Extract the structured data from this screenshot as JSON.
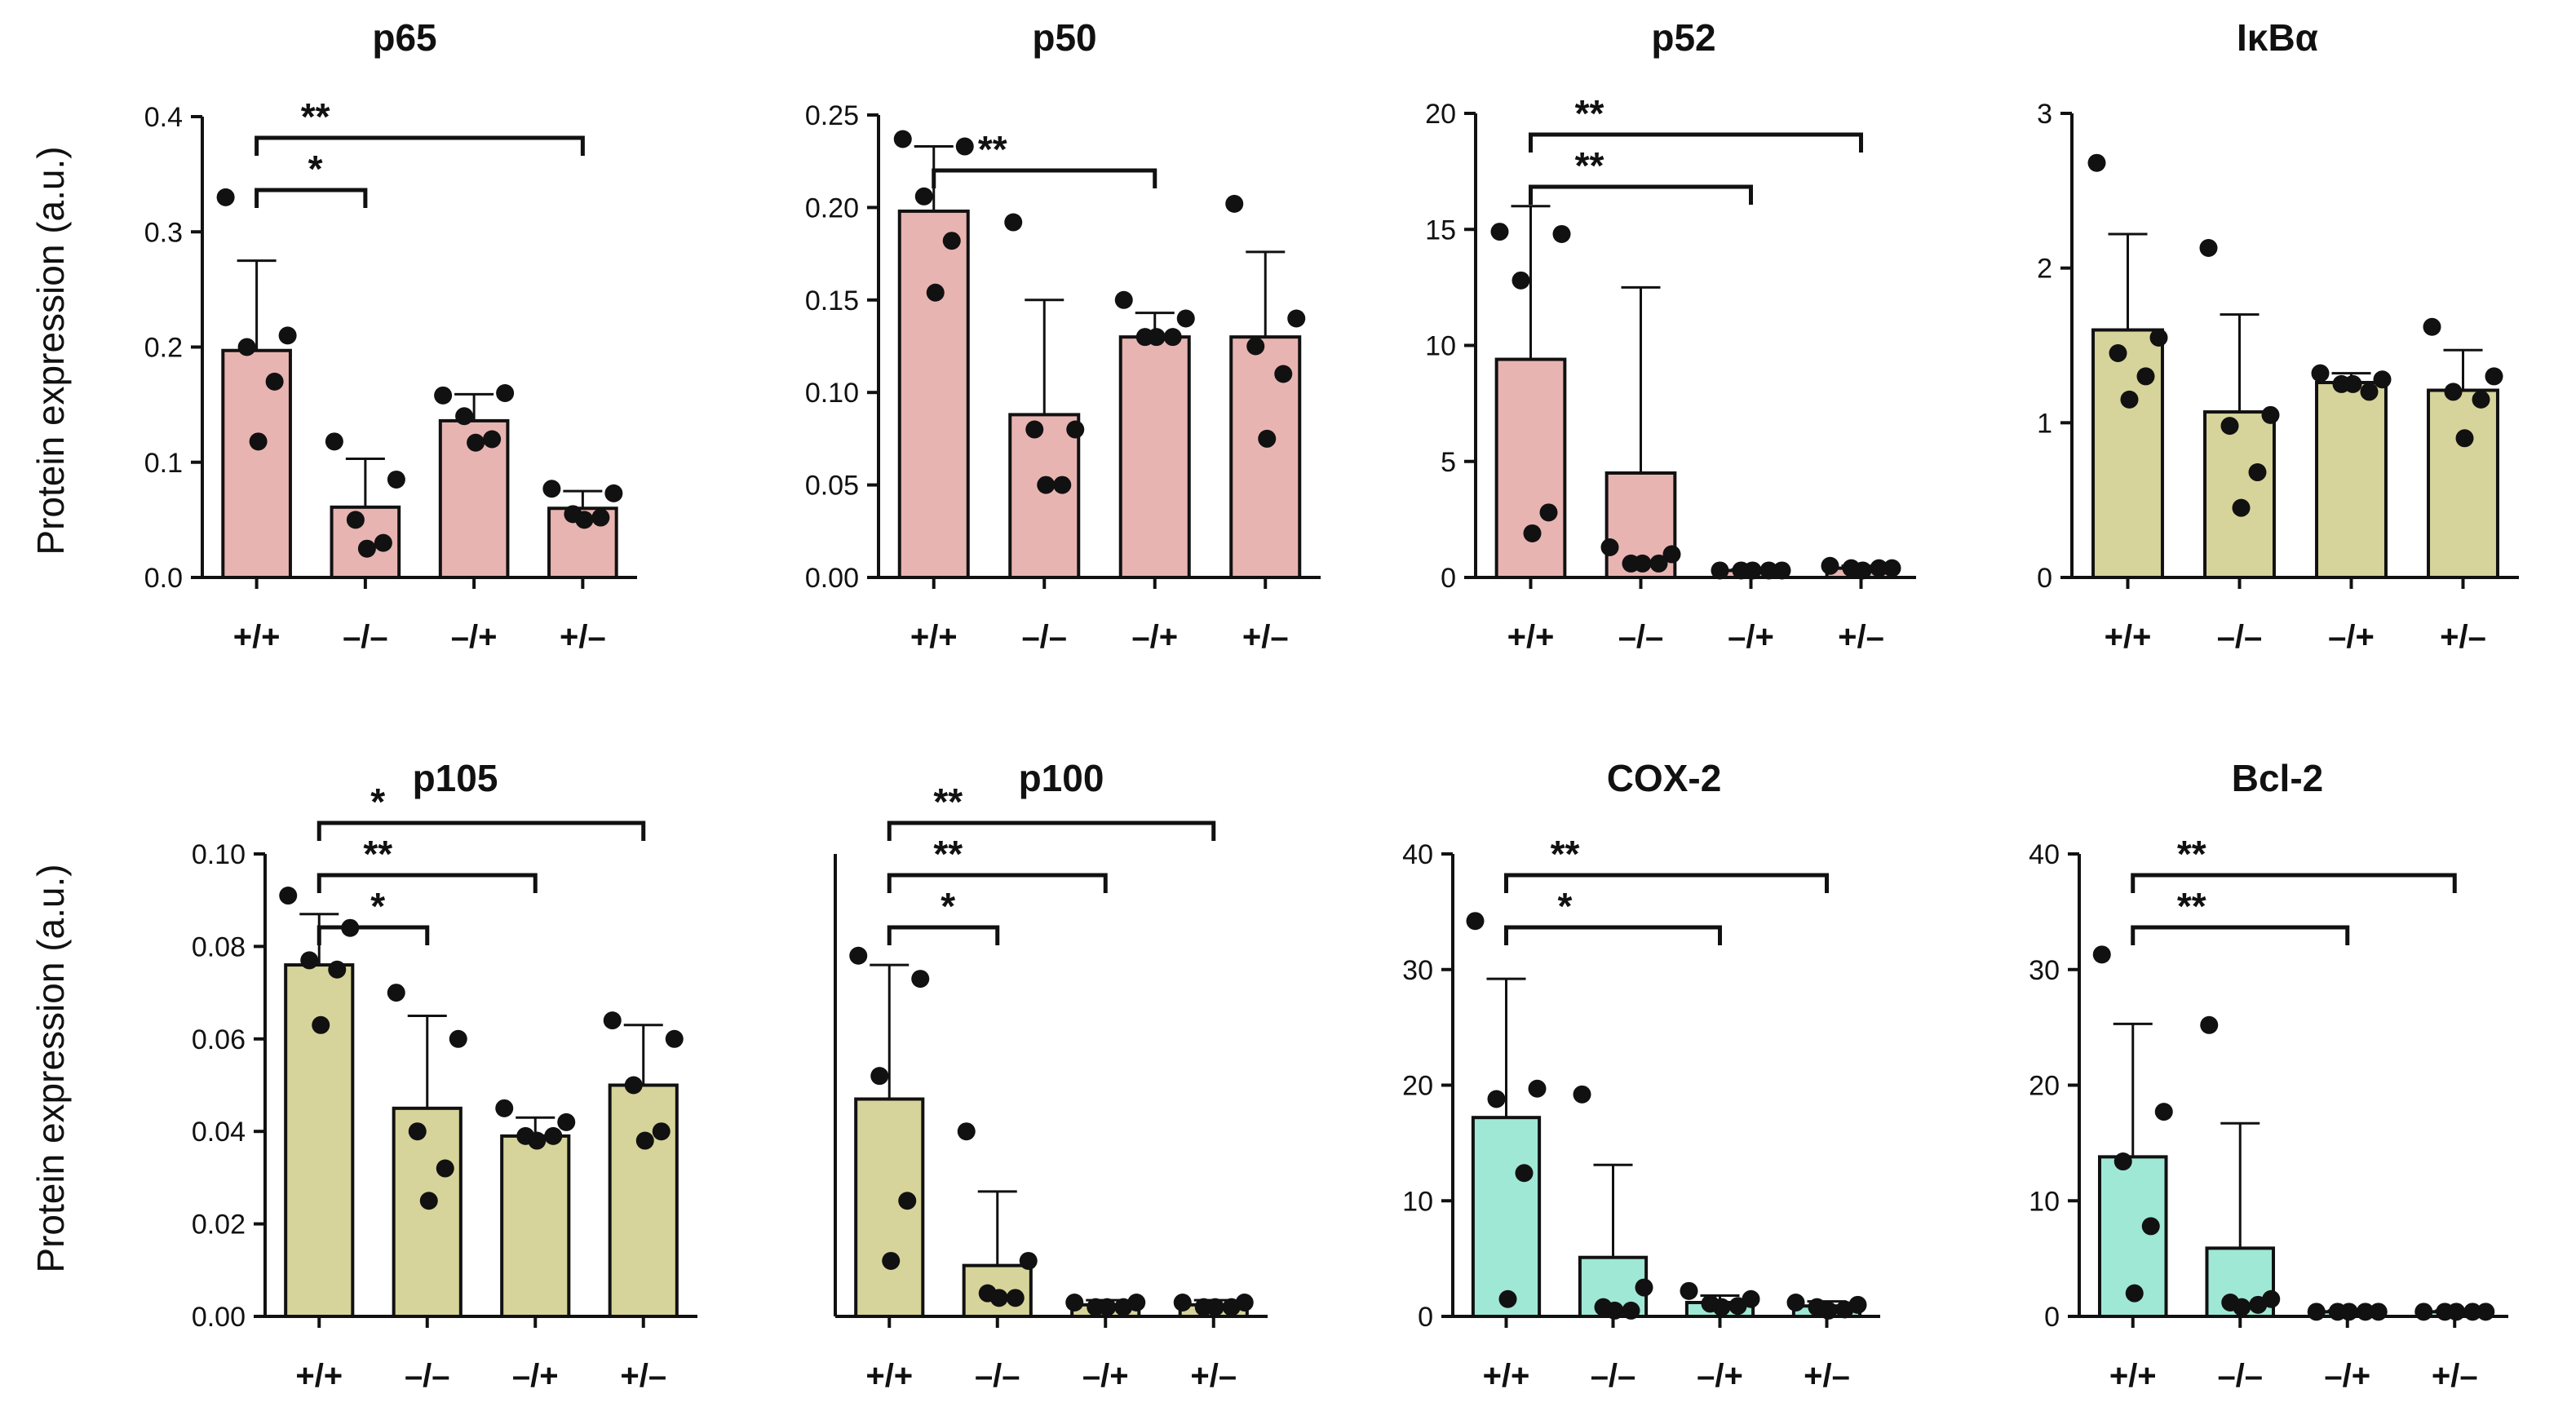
{
  "figure": {
    "ylabel": "Protein expression (a.u.)",
    "colors": {
      "pink": "#e8b4b2",
      "olive": "#d6d49a",
      "teal": "#9fe8d6",
      "ink": "#111111"
    }
  },
  "chart_data": [
    {
      "type": "bar",
      "title": "p65",
      "xlabel": "",
      "ylabel": "Protein expression (a.u.)",
      "categories": [
        "+/+",
        "–/–",
        "–/+",
        "+/–"
      ],
      "values": [
        0.197,
        0.061,
        0.136,
        0.06
      ],
      "errors": [
        0.078,
        0.042,
        0.023,
        0.015
      ],
      "points": [
        [
          0.33,
          0.21,
          0.2,
          0.17,
          0.118
        ],
        [
          0.118,
          0.085,
          0.05,
          0.03,
          0.025
        ],
        [
          0.158,
          0.16,
          0.14,
          0.12,
          0.117
        ],
        [
          0.077,
          0.073,
          0.055,
          0.052,
          0.05
        ]
      ],
      "ylim": [
        0,
        0.4
      ],
      "ticks": [
        0.0,
        0.1,
        0.2,
        0.3,
        0.4
      ],
      "tick_labels": [
        "0.0",
        "0.1",
        "0.2",
        "0.3",
        "0.4"
      ],
      "color": "#e8b4b2",
      "significance": [
        {
          "from": 0,
          "to": 1,
          "label": "*"
        },
        {
          "from": 0,
          "to": 3,
          "label": "**"
        }
      ]
    },
    {
      "type": "bar",
      "title": "p50",
      "xlabel": "",
      "ylabel": "",
      "categories": [
        "+/+",
        "–/–",
        "–/+",
        "+/–"
      ],
      "values": [
        0.198,
        0.088,
        0.13,
        0.13
      ],
      "errors": [
        0.035,
        0.062,
        0.013,
        0.046
      ],
      "points": [
        [
          0.237,
          0.233,
          0.206,
          0.182,
          0.154
        ],
        [
          0.192,
          0.08,
          0.08,
          0.05,
          0.05
        ],
        [
          0.15,
          0.14,
          0.13,
          0.13,
          0.13
        ],
        [
          0.202,
          0.14,
          0.125,
          0.11,
          0.075
        ]
      ],
      "ylim": [
        0,
        0.25
      ],
      "ticks": [
        0.0,
        0.05,
        0.1,
        0.15,
        0.2,
        0.25
      ],
      "tick_labels": [
        "0.00",
        "0.05",
        "0.10",
        "0.15",
        "0.20",
        "0.25"
      ],
      "color": "#e8b4b2",
      "significance": [
        {
          "from": 0,
          "to": 2,
          "label": "**"
        }
      ]
    },
    {
      "type": "bar",
      "title": "p52",
      "xlabel": "",
      "ylabel": "",
      "categories": [
        "+/+",
        "–/–",
        "–/+",
        "+/–"
      ],
      "values": [
        9.4,
        4.5,
        0.3,
        0.4
      ],
      "errors": [
        6.6,
        8.0,
        0.05,
        0.1
      ],
      "points": [
        [
          14.9,
          14.8,
          12.8,
          2.8,
          1.9
        ],
        [
          1.3,
          1.0,
          0.6,
          0.6,
          0.6
        ],
        [
          0.3,
          0.3,
          0.3,
          0.3,
          0.3
        ],
        [
          0.5,
          0.4,
          0.4,
          0.4,
          0.3
        ]
      ],
      "ylim": [
        0,
        20
      ],
      "ticks": [
        0,
        5,
        10,
        15,
        20
      ],
      "tick_labels": [
        "0",
        "5",
        "10",
        "15",
        "20"
      ],
      "color": "#e8b4b2",
      "significance": [
        {
          "from": 0,
          "to": 2,
          "label": "**"
        },
        {
          "from": 0,
          "to": 3,
          "label": "**"
        }
      ]
    },
    {
      "type": "bar",
      "title": "IκBα",
      "xlabel": "",
      "ylabel": "",
      "categories": [
        "+/+",
        "–/–",
        "–/+",
        "+/–"
      ],
      "values": [
        1.6,
        1.07,
        1.26,
        1.21
      ],
      "errors": [
        0.62,
        0.63,
        0.06,
        0.26
      ],
      "points": [
        [
          2.68,
          1.55,
          1.45,
          1.3,
          1.15
        ],
        [
          2.13,
          1.05,
          0.98,
          0.68,
          0.45
        ],
        [
          1.32,
          1.28,
          1.25,
          1.2,
          1.25
        ],
        [
          1.62,
          1.3,
          1.2,
          1.15,
          0.9
        ]
      ],
      "ylim": [
        0,
        3
      ],
      "ticks": [
        0,
        1,
        2,
        3
      ],
      "tick_labels": [
        "0",
        "1",
        "2",
        "3"
      ],
      "color": "#d6d49a",
      "significance": []
    },
    {
      "type": "bar",
      "title": "p105",
      "xlabel": "",
      "ylabel": "Protein expression (a.u.)",
      "categories": [
        "+/+",
        "–/–",
        "–/+",
        "+/–"
      ],
      "values": [
        0.076,
        0.045,
        0.039,
        0.05
      ],
      "errors": [
        0.011,
        0.02,
        0.004,
        0.013
      ],
      "points": [
        [
          0.091,
          0.084,
          0.077,
          0.075,
          0.063
        ],
        [
          0.07,
          0.06,
          0.04,
          0.032,
          0.025
        ],
        [
          0.045,
          0.042,
          0.039,
          0.039,
          0.038
        ],
        [
          0.064,
          0.06,
          0.05,
          0.04,
          0.038
        ]
      ],
      "ylim": [
        0,
        0.1
      ],
      "ticks": [
        0.0,
        0.02,
        0.04,
        0.06,
        0.08,
        0.1
      ],
      "tick_labels": [
        "0.00",
        "0.02",
        "0.04",
        "0.06",
        "0.08",
        "0.10"
      ],
      "color": "#d6d49a",
      "significance": [
        {
          "from": 0,
          "to": 1,
          "label": "*"
        },
        {
          "from": 0,
          "to": 2,
          "label": "**"
        },
        {
          "from": 0,
          "to": 3,
          "label": "*"
        }
      ]
    },
    {
      "type": "bar",
      "title": "p100",
      "xlabel": "",
      "ylabel": "",
      "categories": [
        "+/+",
        "–/–",
        "–/+",
        "+/–"
      ],
      "values": [
        0.047,
        0.011,
        0.0025,
        0.0025
      ],
      "errors": [
        0.029,
        0.016,
        0.001,
        0.001
      ],
      "points": [
        [
          0.078,
          0.073,
          0.052,
          0.025,
          0.012
        ],
        [
          0.04,
          0.012,
          0.005,
          0.004,
          0.004
        ],
        [
          0.003,
          0.003,
          0.002,
          0.002,
          0.002
        ],
        [
          0.003,
          0.003,
          0.002,
          0.002,
          0.002
        ]
      ],
      "ylim": [
        0,
        0.1
      ],
      "ticks": [],
      "tick_labels": [],
      "color": "#d6d49a",
      "significance": [
        {
          "from": 0,
          "to": 1,
          "label": "*"
        },
        {
          "from": 0,
          "to": 2,
          "label": "**"
        },
        {
          "from": 0,
          "to": 3,
          "label": "**"
        }
      ]
    },
    {
      "type": "bar",
      "title": "COX-2",
      "xlabel": "",
      "ylabel": "",
      "categories": [
        "+/+",
        "–/–",
        "–/+",
        "+/–"
      ],
      "values": [
        17.2,
        5.1,
        1.2,
        0.9
      ],
      "errors": [
        12.0,
        8.0,
        0.6,
        0.4
      ],
      "points": [
        [
          34.2,
          19.7,
          18.8,
          12.4,
          1.5
        ],
        [
          19.2,
          2.5,
          0.8,
          0.5,
          0.5
        ],
        [
          2.2,
          1.5,
          1.1,
          0.9,
          0.8
        ],
        [
          1.2,
          1.0,
          0.8,
          0.6,
          0.5
        ]
      ],
      "ylim": [
        0,
        40
      ],
      "ticks": [
        0,
        10,
        20,
        30,
        40
      ],
      "tick_labels": [
        "0",
        "10",
        "20",
        "30",
        "40"
      ],
      "color": "#9fe8d6",
      "significance": [
        {
          "from": 0,
          "to": 2,
          "label": "*"
        },
        {
          "from": 0,
          "to": 3,
          "label": "**"
        }
      ]
    },
    {
      "type": "bar",
      "title": "Bcl-2",
      "xlabel": "",
      "ylabel": "",
      "categories": [
        "+/+",
        "–/–",
        "–/+",
        "+/–"
      ],
      "values": [
        13.8,
        5.9,
        0.4,
        0.4
      ],
      "errors": [
        11.5,
        10.8,
        0.1,
        0.1
      ],
      "points": [
        [
          31.3,
          17.7,
          13.4,
          7.8,
          2.0
        ],
        [
          25.2,
          1.5,
          1.2,
          1.0,
          0.8
        ],
        [
          0.4,
          0.4,
          0.4,
          0.4,
          0.4
        ],
        [
          0.4,
          0.4,
          0.4,
          0.4,
          0.4
        ]
      ],
      "ylim": [
        0,
        40
      ],
      "ticks": [
        0,
        10,
        20,
        30,
        40
      ],
      "tick_labels": [
        "0",
        "10",
        "20",
        "30",
        "40"
      ],
      "color": "#9fe8d6",
      "significance": [
        {
          "from": 0,
          "to": 2,
          "label": "**"
        },
        {
          "from": 0,
          "to": 3,
          "label": "**"
        }
      ]
    }
  ]
}
